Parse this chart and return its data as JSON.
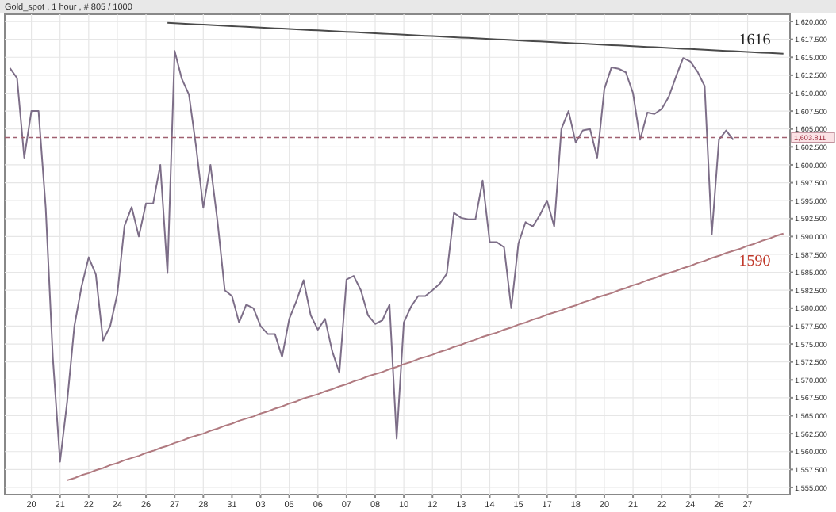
{
  "chart_data": {
    "type": "line",
    "title": "Gold_spot , 1 hour , # 805 / 1000",
    "categories": [
      null,
      null,
      null,
      "20",
      null,
      null,
      null,
      "21",
      null,
      null,
      null,
      "22",
      null,
      null,
      null,
      "24",
      null,
      null,
      null,
      "26",
      null,
      null,
      null,
      "27",
      null,
      null,
      null,
      "28",
      null,
      null,
      null,
      "31",
      null,
      null,
      null,
      "03",
      null,
      null,
      null,
      "05",
      null,
      null,
      null,
      "06",
      null,
      null,
      null,
      "07",
      null,
      null,
      null,
      "08",
      null,
      null,
      null,
      "10",
      null,
      null,
      null,
      "12",
      null,
      null,
      null,
      "13",
      null,
      null,
      null,
      "14",
      null,
      null,
      null,
      "15",
      null,
      null,
      null,
      "17",
      null,
      null,
      null,
      "18",
      null,
      null,
      null,
      "20",
      null,
      null,
      null,
      "21",
      null,
      null,
      null,
      "22",
      null,
      null,
      null,
      "24",
      null,
      null,
      null,
      "26",
      null,
      null,
      null,
      "27",
      null,
      null,
      null,
      null,
      null
    ],
    "ylim": [
      1554,
      1621
    ],
    "yticks": [
      {
        "value": 1555,
        "label": "1,555.000"
      },
      {
        "value": 1557.5,
        "label": "1,557.500"
      },
      {
        "value": 1560,
        "label": "1,560.000"
      },
      {
        "value": 1562.5,
        "label": "1,562.500"
      },
      {
        "value": 1565,
        "label": "1,565.000"
      },
      {
        "value": 1567.5,
        "label": "1,567.500"
      },
      {
        "value": 1570,
        "label": "1,570.000"
      },
      {
        "value": 1572.5,
        "label": "1,572.500"
      },
      {
        "value": 1575,
        "label": "1,575.000"
      },
      {
        "value": 1577.5,
        "label": "1,577.500"
      },
      {
        "value": 1580,
        "label": "1,580.000"
      },
      {
        "value": 1582.5,
        "label": "1,582.500"
      },
      {
        "value": 1585,
        "label": "1,585.000"
      },
      {
        "value": 1587.5,
        "label": "1,587.500"
      },
      {
        "value": 1590,
        "label": "1,590.000"
      },
      {
        "value": 1592.5,
        "label": "1,592.500"
      },
      {
        "value": 1595,
        "label": "1,595.000"
      },
      {
        "value": 1597.5,
        "label": "1,597.500"
      },
      {
        "value": 1600,
        "label": "1,600.000"
      },
      {
        "value": 1602.5,
        "label": "1,602.500"
      },
      {
        "value": 1605,
        "label": "1,605.000"
      },
      {
        "value": 1607.5,
        "label": "1,607.500"
      },
      {
        "value": 1610,
        "label": "1,610.000"
      },
      {
        "value": 1612.5,
        "label": "1,612.500"
      },
      {
        "value": 1615,
        "label": "1,615.000"
      },
      {
        "value": 1617.5,
        "label": "1,617.500"
      },
      {
        "value": 1620,
        "label": "1,620.000"
      }
    ],
    "grid": true,
    "line_style": "solid",
    "series": [
      {
        "color": "#7d6e88",
        "values": [
          1613.5,
          1612.1,
          1601.0,
          1607.5,
          1607.5,
          1594.0,
          1573.0,
          1558.6,
          1567.0,
          1577.5,
          1583.0,
          1587.1,
          1584.7,
          1575.5,
          1577.5,
          1582.0,
          1591.5,
          1594.1,
          1590.0,
          1594.6,
          1594.6,
          1600.0,
          1584.9,
          1615.9,
          1612.0,
          1609.8,
          1602.5,
          1594.0,
          1600.0,
          1592.0,
          1582.5,
          1581.7,
          1578.0,
          1580.5,
          1580.0,
          1577.5,
          1576.4,
          1576.4,
          1573.2,
          1578.5,
          1581.0,
          1583.9,
          1579.0,
          1577.0,
          1578.5,
          1574.0,
          1571.0,
          1584.0,
          1584.5,
          1582.5,
          1579.0,
          1577.8,
          1578.3,
          1580.5,
          1561.8,
          1578.0,
          1580.2,
          1581.7,
          1581.7,
          1582.5,
          1583.4,
          1584.8,
          1593.3,
          1592.6,
          1592.4,
          1592.4,
          1597.8,
          1589.2,
          1589.2,
          1588.5,
          1580.0,
          1589.0,
          1592.0,
          1591.4,
          1593.0,
          1595.0,
          1591.4,
          1605.0,
          1607.5,
          1603.1,
          1604.8,
          1605.0,
          1601.0,
          1610.6,
          1613.6,
          1613.4,
          1612.9,
          1610.0,
          1603.5,
          1607.3,
          1607.1,
          1607.8,
          1609.5,
          1612.3,
          1614.9,
          1614.4,
          1613.0,
          1611.0,
          1590.3,
          1603.5,
          1604.8,
          1603.5,
          null,
          null,
          null,
          null,
          null,
          null,
          null
        ]
      },
      {
        "color": "#4a4a4a",
        "values": [
          null,
          null,
          null,
          null,
          null,
          null,
          null,
          null,
          null,
          null,
          null,
          null,
          null,
          null,
          null,
          null,
          null,
          null,
          null,
          null,
          null,
          null,
          1619.8,
          1619.75,
          1619.7,
          1619.65,
          1619.6,
          1619.55,
          1619.5,
          1619.45,
          1619.4,
          1619.35,
          1619.3,
          1619.25,
          1619.2,
          1619.15,
          1619.1,
          1619.05,
          1619.0,
          1618.95,
          1618.9,
          1618.85,
          1618.8,
          1618.75,
          1618.7,
          1618.65,
          1618.6,
          1618.55,
          1618.5,
          1618.45,
          1618.4,
          1618.35,
          1618.3,
          1618.25,
          1618.2,
          1618.15,
          1618.1,
          1618.05,
          1618.0,
          1617.95,
          1617.9,
          1617.85,
          1617.8,
          1617.75,
          1617.7,
          1617.65,
          1617.6,
          1617.55,
          1617.5,
          1617.45,
          1617.4,
          1617.35,
          1617.3,
          1617.25,
          1617.2,
          1617.15,
          1617.1,
          1617.05,
          1617.0,
          1616.95,
          1616.9,
          1616.85,
          1616.8,
          1616.75,
          1616.7,
          1616.65,
          1616.6,
          1616.55,
          1616.5,
          1616.45,
          1616.4,
          1616.35,
          1616.3,
          1616.25,
          1616.2,
          1616.15,
          1616.1,
          1616.05,
          1616.0,
          1615.95,
          1615.9,
          1615.85,
          1615.8,
          1615.75,
          1615.7,
          1615.65,
          1615.6,
          1615.55,
          1615.5
        ]
      },
      {
        "color": "#b07a80",
        "values": [
          null,
          null,
          null,
          null,
          null,
          null,
          null,
          null,
          1556.0,
          1556.3,
          1556.7,
          1557.0,
          1557.4,
          1557.7,
          1558.1,
          1558.4,
          1558.8,
          1559.1,
          1559.4,
          1559.8,
          1560.1,
          1560.5,
          1560.8,
          1561.2,
          1561.5,
          1561.9,
          1562.2,
          1562.5,
          1562.9,
          1563.2,
          1563.6,
          1563.9,
          1564.3,
          1564.6,
          1564.9,
          1565.3,
          1565.6,
          1566.0,
          1566.3,
          1566.7,
          1567.0,
          1567.4,
          1567.7,
          1568.0,
          1568.4,
          1568.7,
          1569.1,
          1569.4,
          1569.8,
          1570.1,
          1570.5,
          1570.8,
          1571.1,
          1571.5,
          1571.8,
          1572.2,
          1572.5,
          1572.9,
          1573.2,
          1573.5,
          1573.9,
          1574.2,
          1574.6,
          1574.9,
          1575.3,
          1575.6,
          1576.0,
          1576.3,
          1576.6,
          1577.0,
          1577.3,
          1577.7,
          1578.0,
          1578.4,
          1578.7,
          1579.1,
          1579.4,
          1579.7,
          1580.1,
          1580.4,
          1580.8,
          1581.1,
          1581.5,
          1581.8,
          1582.1,
          1582.5,
          1582.8,
          1583.2,
          1583.5,
          1583.9,
          1584.2,
          1584.6,
          1584.9,
          1585.2,
          1585.6,
          1585.9,
          1586.3,
          1586.6,
          1587.0,
          1587.3,
          1587.7,
          1588.0,
          1588.3,
          1588.7,
          1589.0,
          1589.4,
          1589.7,
          1590.1,
          1590.4
        ]
      }
    ],
    "ref_lines": [
      {
        "axis": "y",
        "value": 1603.811,
        "label": "1,603.811",
        "color": "#a06070",
        "line_style": "dashed"
      }
    ],
    "annotations": [
      "1616",
      "1590"
    ]
  }
}
